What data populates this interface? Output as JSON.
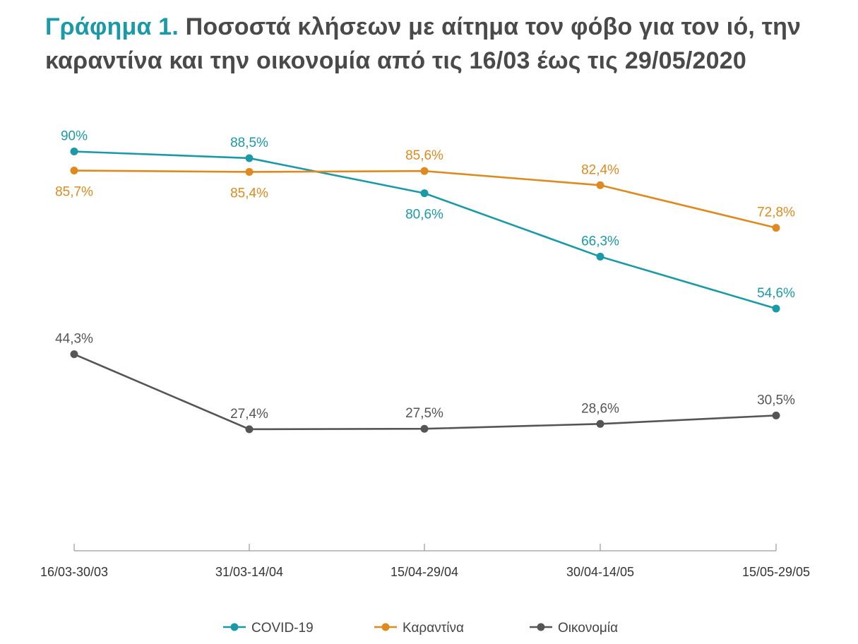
{
  "title": {
    "prefix": "Γράφημα 1.",
    "text": "Ποσοστά κλήσεων με αίτημα τον φόβο για τον ιό, την καραντίνα και την οικονομία από τις 16/03 έως τις 29/05/2020"
  },
  "chart_data": {
    "type": "line",
    "categories": [
      "16/03-30/03",
      "31/03-14/04",
      "15/04-29/04",
      "30/04-14/05",
      "15/05-29/05"
    ],
    "ylim": [
      0,
      100
    ],
    "grid": false,
    "legend_position": "bottom",
    "series": [
      {
        "name": "COVID-19",
        "color": "#1a9aa6",
        "values": [
          90,
          88.5,
          80.6,
          66.3,
          54.6
        ],
        "labels": [
          "90%",
          "88,5%",
          "80,6%",
          "66,3%",
          "54,6%"
        ],
        "label_positions": [
          "above",
          "above",
          "below",
          "above",
          "above"
        ]
      },
      {
        "name": "Καραντίνα",
        "color": "#de8a1e",
        "values": [
          85.7,
          85.4,
          85.6,
          82.4,
          72.8
        ],
        "labels": [
          "85,7%",
          "85,4%",
          "85,6%",
          "82,4%",
          "72,8%"
        ],
        "label_positions": [
          "below",
          "below",
          "above",
          "above",
          "above"
        ]
      },
      {
        "name": "Οικονομία",
        "color": "#555555",
        "values": [
          44.3,
          27.4,
          27.5,
          28.6,
          30.5
        ],
        "labels": [
          "44,3%",
          "27,4%",
          "27,5%",
          "28,6%",
          "30,5%"
        ],
        "label_positions": [
          "above",
          "above",
          "above",
          "above",
          "above"
        ]
      }
    ]
  }
}
